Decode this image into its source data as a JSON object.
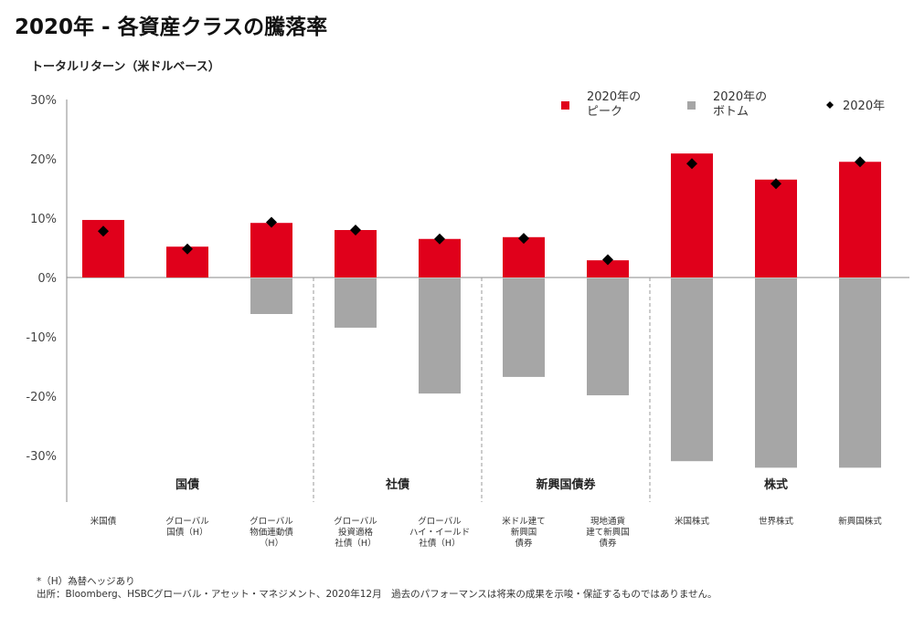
{
  "title": "2020年 - 各資産クラスの騰落率",
  "subtitle": "トータルリターン（米ドルベース）",
  "footnotes": [
    "*（H）為替ヘッジあり",
    "出所：Bloomberg、HSBCグローバル・アセット・マネジメント、2020年12月　過去のパフォーマンスは将来の成果を示唆・保証するものではありません。"
  ],
  "chart_data": {
    "type": "bar",
    "title": "2020年 - 各資産クラスの騰落率",
    "ylabel": "トータルリターン（米ドルベース）",
    "ylim": [
      -30,
      30
    ],
    "yticks": [
      "30%",
      "20%",
      "10%",
      "0%",
      "-10%",
      "-20%",
      "-30%"
    ],
    "ytick_values": [
      30,
      20,
      10,
      0,
      -10,
      -20,
      -30
    ],
    "categories": [
      [
        "米国債"
      ],
      [
        "グローバル",
        "国債（H）"
      ],
      [
        "グローバル",
        "物価連動債",
        "（H）"
      ],
      [
        "グローバル",
        "投資適格",
        "社債（H）"
      ],
      [
        "グローバル",
        "ハイ・イールド",
        "社債（H）"
      ],
      [
        "米ドル建て",
        "新興国",
        "債券"
      ],
      [
        "現地通貨",
        "建て新興国",
        "債券"
      ],
      [
        "米国株式"
      ],
      [
        "世界株式"
      ],
      [
        "新興国株式"
      ]
    ],
    "groups": [
      {
        "label": "国債",
        "from": 0,
        "to": 2
      },
      {
        "label": "社債",
        "from": 3,
        "to": 4
      },
      {
        "label": "新興国債券",
        "from": 5,
        "to": 6
      },
      {
        "label": "株式",
        "from": 7,
        "to": 9
      }
    ],
    "series": [
      {
        "name": "2020年のピーク",
        "color": "#e0001b",
        "kind": "bar",
        "values": [
          9.7,
          5.2,
          9.2,
          8.0,
          6.5,
          6.8,
          2.9,
          20.9,
          16.5,
          19.5
        ]
      },
      {
        "name": "2020年のボトム",
        "color": "#a6a6a6",
        "kind": "bar",
        "values": [
          0,
          0,
          -6.0,
          -8.3,
          -19.4,
          -16.6,
          -19.7,
          -30.8,
          -31.9,
          -31.9
        ]
      },
      {
        "name": "2020年",
        "color": "#000000",
        "kind": "diamond",
        "values": [
          7.8,
          4.8,
          9.3,
          8.0,
          6.5,
          6.6,
          3.0,
          19.2,
          15.8,
          19.5
        ]
      }
    ],
    "legend": {
      "placement": "top-right",
      "entries": [
        [
          "2020年の",
          "ピーク"
        ],
        [
          "2020年の",
          "ボトム"
        ],
        [
          "2020年"
        ]
      ]
    },
    "grid": false
  }
}
